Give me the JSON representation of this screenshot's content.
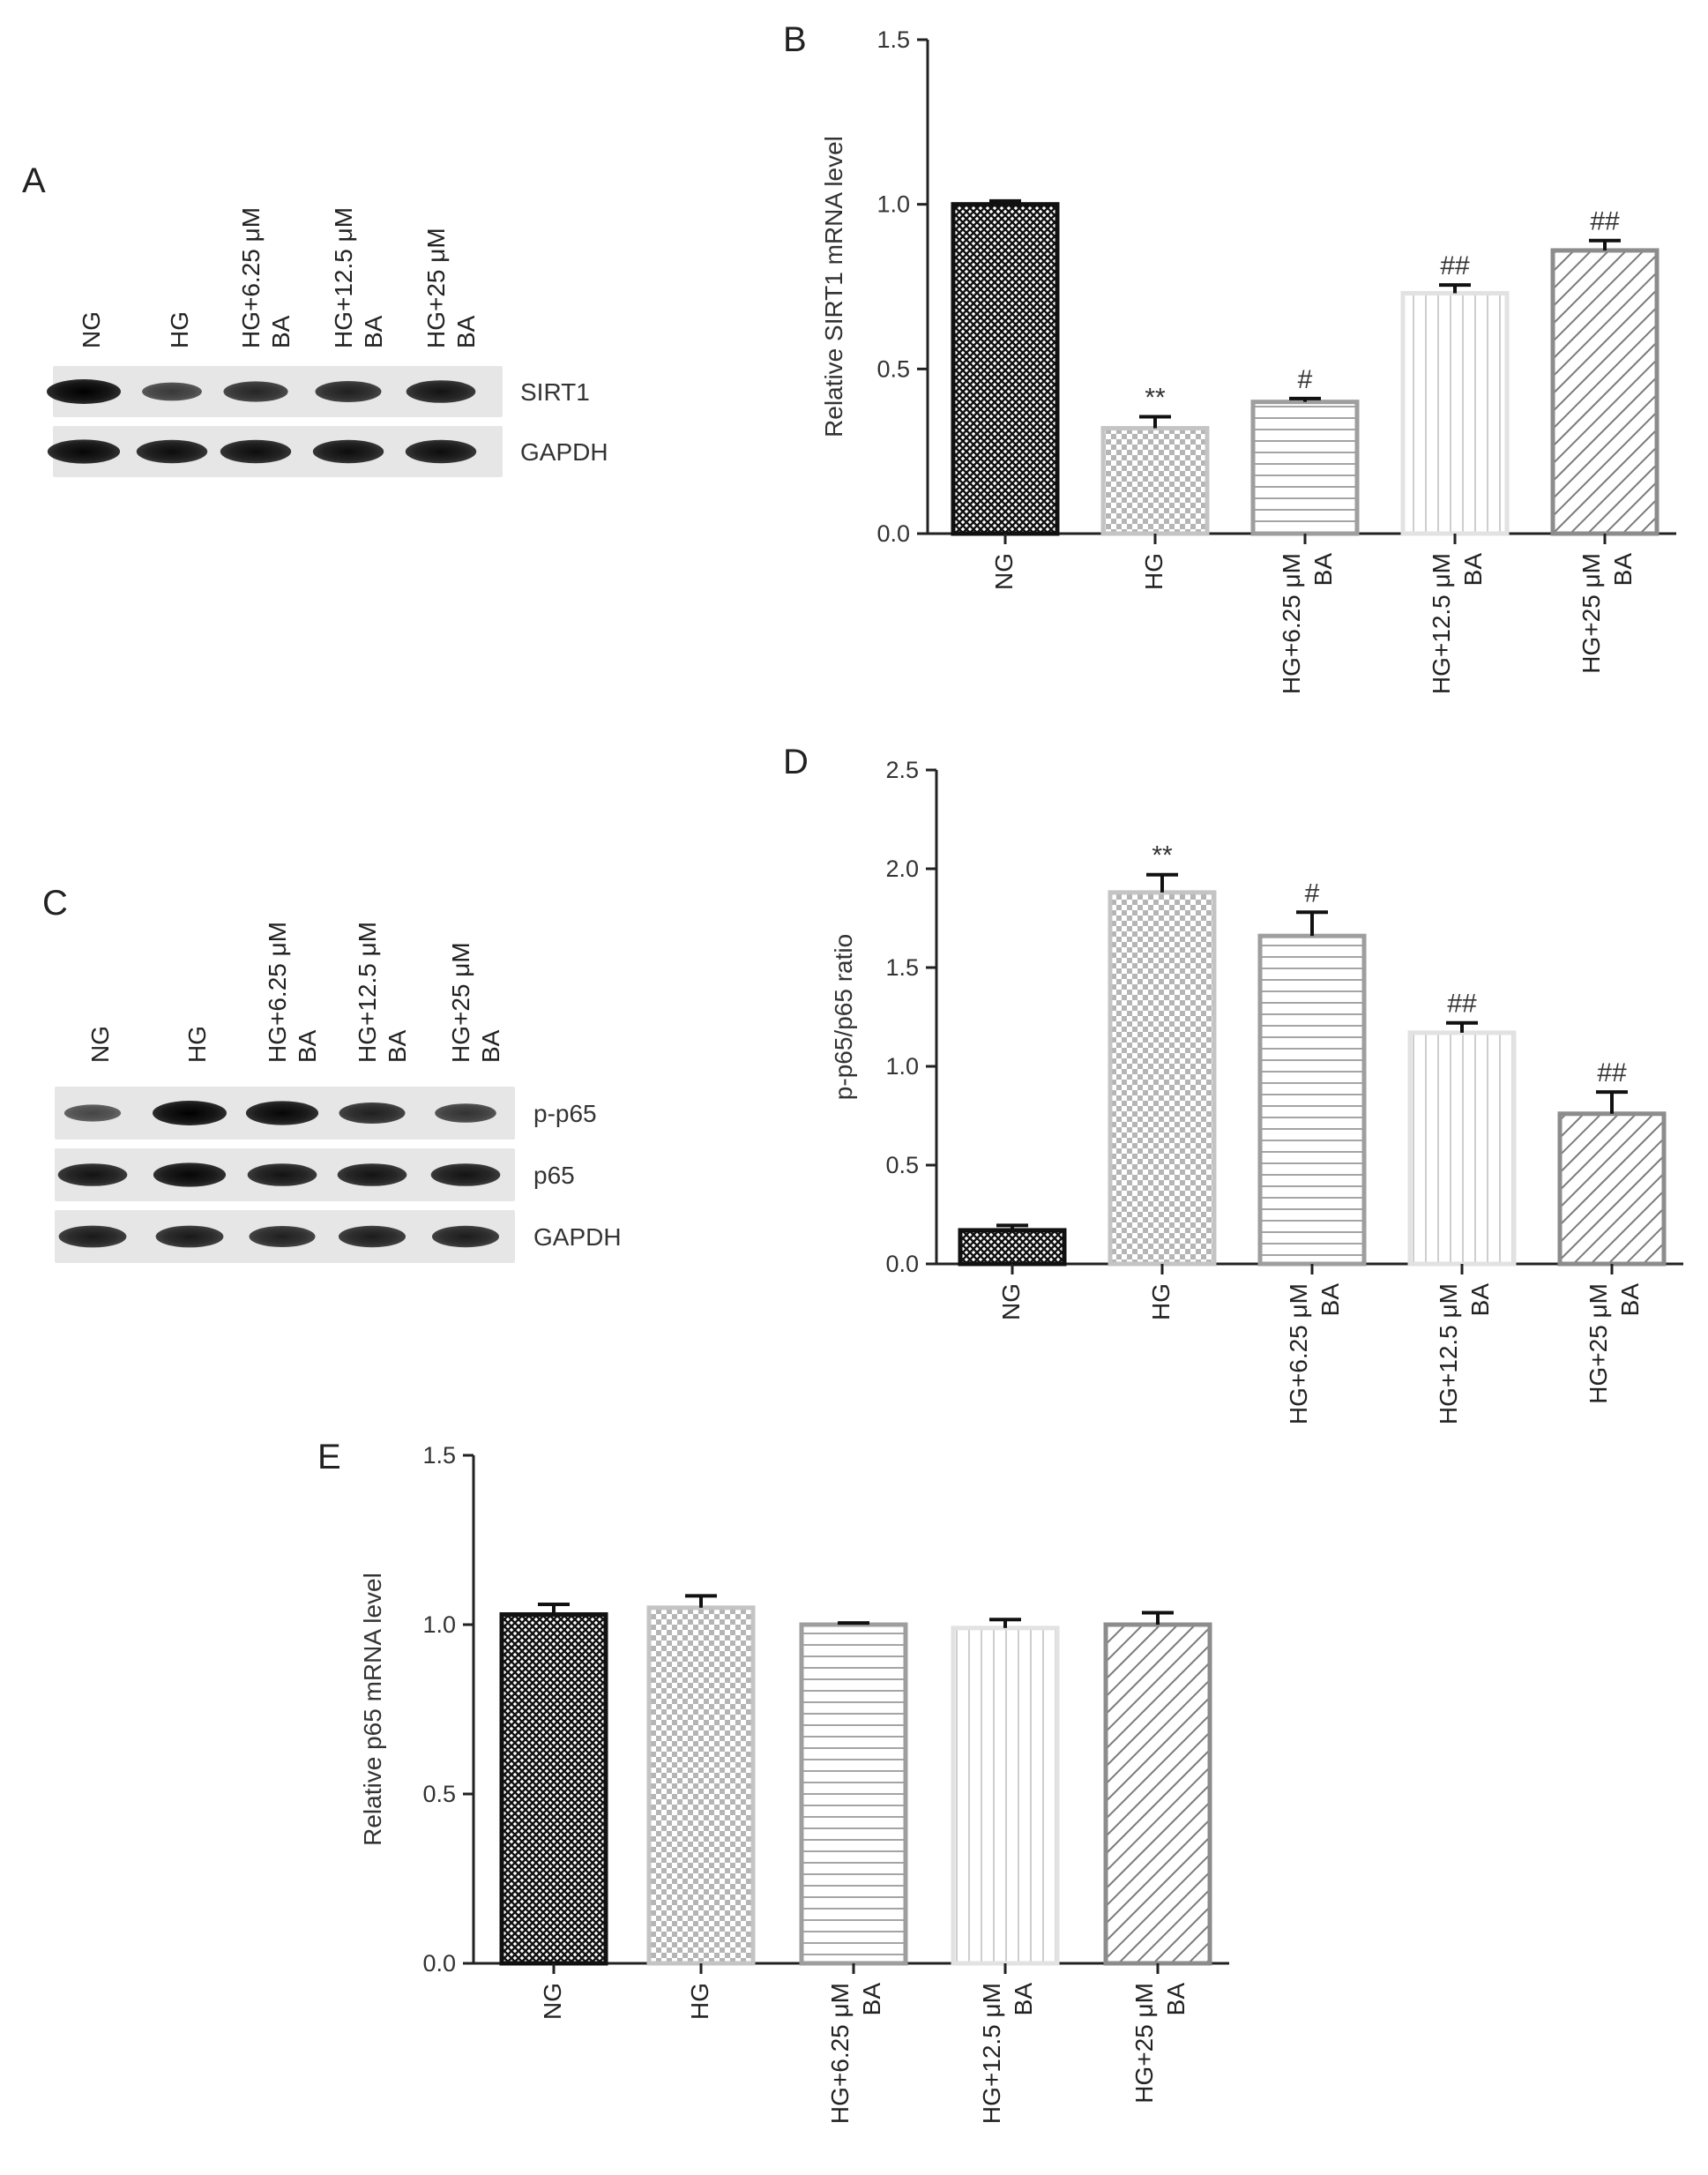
{
  "figure": {
    "panels": {
      "A": {
        "letter": "A",
        "lanes": [
          "NG",
          "HG",
          "HG+6.25 μM\nBA",
          "HG+12.5 μM\nBA",
          "HG+25 μM\nBA"
        ],
        "rows": [
          {
            "label": "SIRT1",
            "intensity": [
              1.0,
              0.55,
              0.7,
              0.75,
              0.85
            ]
          },
          {
            "label": "GAPDH",
            "intensity": [
              0.95,
              0.9,
              0.9,
              0.9,
              0.9
            ]
          }
        ]
      },
      "C": {
        "letter": "C",
        "lanes": [
          "NG",
          "HG",
          "HG+6.25 μM\nBA",
          "HG+12.5 μM\nBA",
          "HG+25 μM\nBA"
        ],
        "rows": [
          {
            "label": "p-p65",
            "intensity": [
              0.45,
              1.0,
              0.95,
              0.75,
              0.6
            ]
          },
          {
            "label": "p65",
            "intensity": [
              0.85,
              0.95,
              0.85,
              0.85,
              0.85
            ]
          },
          {
            "label": "GAPDH",
            "intensity": [
              0.8,
              0.8,
              0.75,
              0.78,
              0.78
            ]
          }
        ]
      }
    }
  },
  "chart_data": [
    {
      "panel": "B",
      "type": "bar",
      "categories": [
        "NG",
        "HG",
        "HG+6.25 μM\nBA",
        "HG+12.5 μM\nBA",
        "HG+25 μM\nBA"
      ],
      "values": [
        1.0,
        0.32,
        0.4,
        0.73,
        0.86
      ],
      "errors": [
        0.01,
        0.035,
        0.01,
        0.025,
        0.03
      ],
      "annotations": [
        "",
        "**",
        "#",
        "##",
        "##"
      ],
      "ylabel": "Relative SIRT1 mRNA level",
      "ylim": [
        0,
        1.5
      ],
      "yticks": [
        "0.0",
        "0.5",
        "1.0",
        "1.5"
      ],
      "grid": false
    },
    {
      "panel": "D",
      "type": "bar",
      "categories": [
        "NG",
        "HG",
        "HG+6.25 μM\nBA",
        "HG+12.5 μM\nBA",
        "HG+25 μM\nBA"
      ],
      "values": [
        0.17,
        1.88,
        1.66,
        1.17,
        0.76
      ],
      "errors": [
        0.025,
        0.09,
        0.12,
        0.05,
        0.11
      ],
      "annotations": [
        "",
        "**",
        "#",
        "##",
        "##"
      ],
      "ylabel": "p-p65/p65 ratio",
      "ylim": [
        0,
        2.5
      ],
      "yticks": [
        "0.0",
        "0.5",
        "1.0",
        "1.5",
        "2.0",
        "2.5"
      ],
      "grid": false
    },
    {
      "panel": "E",
      "type": "bar",
      "categories": [
        "NG",
        "HG",
        "HG+6.25 μM\nBA",
        "HG+12.5 μM\nBA",
        "HG+25 μM\nBA"
      ],
      "values": [
        1.03,
        1.05,
        1.0,
        0.99,
        1.0
      ],
      "errors": [
        0.03,
        0.035,
        0.005,
        0.025,
        0.035
      ],
      "annotations": [
        "",
        "",
        "",
        "",
        ""
      ],
      "ylabel": "Relative p65 mRNA level",
      "ylim": [
        0,
        1.5
      ],
      "yticks": [
        "0.0",
        "0.5",
        "1.0",
        "1.5"
      ],
      "grid": false
    }
  ],
  "colors": {
    "axis": "#222222",
    "series_outlines": [
      "#111111",
      "#c4c4c4",
      "#9e9e9e",
      "#e2e2e2",
      "#8c8c8c"
    ]
  }
}
